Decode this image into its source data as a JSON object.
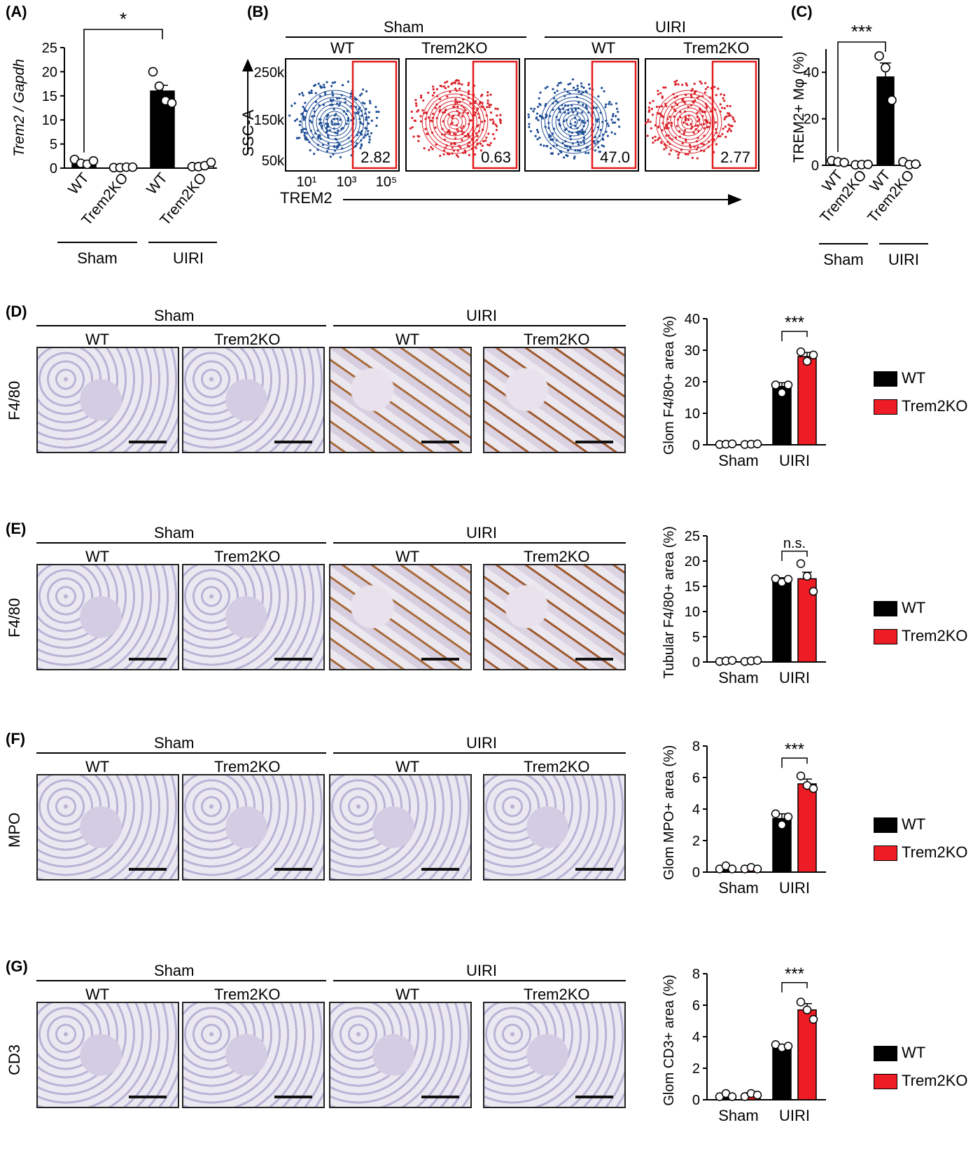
{
  "panels": {
    "A": "(A)",
    "B": "(B)",
    "C": "(C)",
    "D": "(D)",
    "E": "(E)",
    "F": "(F)",
    "G": "(G)"
  },
  "groups": {
    "sham": "Sham",
    "uiri": "UIRI",
    "wt": "WT",
    "ko": "Trem2KO"
  },
  "colors": {
    "wt": "#000000",
    "ko": "#ee1c24",
    "flow_wt": "#1f4e96",
    "flow_ko": "#d9222a",
    "gate": "#e41a1c"
  },
  "panelB": {
    "y_axis": "SSC-A",
    "x_axis": "TREM2",
    "y_ticks": [
      "250k",
      "150k",
      "50k"
    ],
    "x_ticks": [
      "10¹",
      "10³",
      "10⁵"
    ],
    "gate_values": [
      "2.82",
      "0.63",
      "47.0",
      "2.77"
    ]
  },
  "micro": {
    "D": "F4/80",
    "E": "F4/80",
    "F": "MPO",
    "G": "CD3"
  },
  "legend": {
    "wt": "WT",
    "ko": "Trem2KO"
  },
  "chart_data": [
    {
      "id": "A",
      "type": "bar",
      "ylabel": "Trem2 / Gapdh",
      "categories": [
        "WT",
        "Trem2KO",
        "WT",
        "Trem2KO"
      ],
      "groups": [
        "Sham",
        "UIRI"
      ],
      "values": [
        1.2,
        0.2,
        16,
        0.4
      ],
      "errors": [
        0.3,
        0.1,
        1.2,
        0.2
      ],
      "points": [
        [
          1.8,
          1.0,
          0.8,
          1.5
        ],
        [
          0.1,
          0.1,
          0.2,
          0.2
        ],
        [
          20,
          17,
          14,
          13.5
        ],
        [
          0.3,
          0.3,
          0.5,
          1.2
        ]
      ],
      "ylim": [
        0,
        25
      ],
      "yticks": [
        0,
        5,
        10,
        15,
        20,
        25
      ],
      "significance": [
        {
          "between": [
            0,
            2
          ],
          "label": "*"
        }
      ]
    },
    {
      "id": "C",
      "type": "bar",
      "ylabel": "TREM2+ Mφ (%)",
      "categories": [
        "WT",
        "Trem2KO",
        "WT",
        "Trem2KO"
      ],
      "groups": [
        "Sham",
        "UIRI"
      ],
      "values": [
        1.5,
        0.3,
        38,
        0.8
      ],
      "errors": [
        0.4,
        0.1,
        6,
        0.4
      ],
      "points": [
        [
          2,
          1.5,
          1.2
        ],
        [
          0.2,
          0.3,
          0.4
        ],
        [
          47,
          42,
          28
        ],
        [
          1.5,
          0.3,
          0.5
        ]
      ],
      "ylim": [
        0,
        50
      ],
      "yticks": [
        0,
        20,
        40
      ],
      "significance": [
        {
          "between": [
            0,
            2
          ],
          "label": "***"
        }
      ]
    },
    {
      "id": "D",
      "type": "bar",
      "ylabel": "Glom F4/80+ area (%)",
      "categories": [
        "Sham",
        "UIRI"
      ],
      "series": [
        {
          "name": "WT",
          "values": [
            0.2,
            18.5
          ],
          "errors": [
            0.1,
            1.2
          ],
          "points": [
            [
              0.1,
              0.2,
              0.3
            ],
            [
              19,
              16.5,
              19
            ]
          ]
        },
        {
          "name": "Trem2KO",
          "values": [
            0.2,
            28
          ],
          "errors": [
            0.1,
            1.3
          ],
          "points": [
            [
              0.1,
              0.2,
              0.3
            ],
            [
              29.5,
              26.5,
              28.5
            ]
          ]
        }
      ],
      "ylim": [
        0,
        40
      ],
      "yticks": [
        0,
        10,
        20,
        30,
        40
      ],
      "significance": [
        {
          "category": 1,
          "label": "***"
        }
      ]
    },
    {
      "id": "E",
      "type": "bar",
      "ylabel": "Tubular F4/80+ area (%)",
      "categories": [
        "Sham",
        "UIRI"
      ],
      "series": [
        {
          "name": "WT",
          "values": [
            0.2,
            16.2
          ],
          "errors": [
            0.1,
            0.5
          ],
          "points": [
            [
              0.1,
              0.2,
              0.3
            ],
            [
              16.5,
              15.8,
              16.4
            ]
          ]
        },
        {
          "name": "Trem2KO",
          "values": [
            0.2,
            16.5
          ],
          "errors": [
            0.1,
            1.3
          ],
          "points": [
            [
              0.1,
              0.2,
              0.3
            ],
            [
              19.5,
              17,
              14
            ]
          ]
        }
      ],
      "ylim": [
        0,
        25
      ],
      "yticks": [
        0,
        5,
        10,
        15,
        20,
        25
      ],
      "significance": [
        {
          "category": 1,
          "label": "n.s."
        }
      ]
    },
    {
      "id": "F",
      "type": "bar",
      "ylabel": "Glom MPO+ area (%)",
      "categories": [
        "Sham",
        "UIRI"
      ],
      "series": [
        {
          "name": "WT",
          "values": [
            0.3,
            3.4
          ],
          "errors": [
            0.1,
            0.3
          ],
          "points": [
            [
              0.2,
              0.4,
              0.2
            ],
            [
              3.7,
              3.0,
              3.5
            ]
          ]
        },
        {
          "name": "Trem2KO",
          "values": [
            0.25,
            5.6
          ],
          "errors": [
            0.05,
            0.3
          ],
          "points": [
            [
              0.2,
              0.3,
              0.2
            ],
            [
              6.1,
              5.5,
              5.3
            ]
          ]
        }
      ],
      "ylim": [
        0,
        8
      ],
      "yticks": [
        0,
        2,
        4,
        6,
        8
      ],
      "significance": [
        {
          "category": 1,
          "label": "***"
        }
      ]
    },
    {
      "id": "G",
      "type": "bar",
      "ylabel": "Glom CD3+ area (%)",
      "categories": [
        "Sham",
        "UIRI"
      ],
      "series": [
        {
          "name": "WT",
          "values": [
            0.3,
            3.4
          ],
          "errors": [
            0.1,
            0.1
          ],
          "points": [
            [
              0.2,
              0.4,
              0.2
            ],
            [
              3.5,
              3.3,
              3.4
            ]
          ]
        },
        {
          "name": "Trem2KO",
          "values": [
            0.35,
            5.7
          ],
          "errors": [
            0.1,
            0.4
          ],
          "points": [
            [
              0.2,
              0.4,
              0.3
            ],
            [
              6.2,
              5.7,
              5.1
            ]
          ]
        }
      ],
      "ylim": [
        0,
        8
      ],
      "yticks": [
        0,
        2,
        4,
        6,
        8
      ],
      "significance": [
        {
          "category": 1,
          "label": "***"
        }
      ]
    }
  ]
}
